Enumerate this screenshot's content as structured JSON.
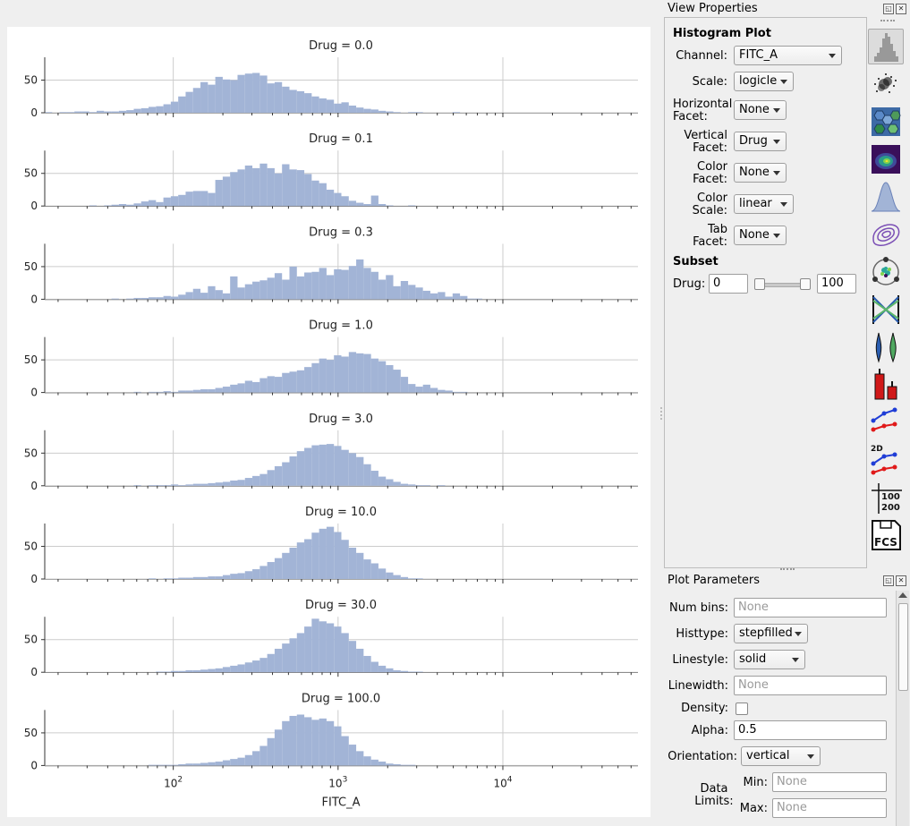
{
  "view_properties": {
    "title": "View Properties",
    "section_title": "Histogram Plot",
    "channel": {
      "label": "Channel:",
      "value": "FITC_A"
    },
    "scale": {
      "label": "Scale:",
      "value": "logicle"
    },
    "horizontal_facet": {
      "label_line1": "Horizontal",
      "label_line2": "Facet:",
      "value": "None"
    },
    "vertical_facet": {
      "label_line1": "Vertical",
      "label_line2": "Facet:",
      "value": "Drug"
    },
    "color_facet": {
      "label_line1": "Color",
      "label_line2": "Facet:",
      "value": "None"
    },
    "color_scale": {
      "label_line1": "Color",
      "label_line2": "Scale:",
      "value": "linear"
    },
    "tab_facet": {
      "label_line1": "Tab",
      "label_line2": "Facet:",
      "value": "None"
    },
    "subset_title": "Subset",
    "subset": {
      "label": "Drug:",
      "min_value": "0",
      "max_value": "100"
    }
  },
  "toolbar": {
    "icons": [
      "histogram-icon",
      "scatterplot-icon",
      "hexbin-icon",
      "density-2d-icon",
      "kde-icon",
      "contour-icon",
      "radviz-icon",
      "parallel-coordinates-icon",
      "violin-icon",
      "bar-chart-icon",
      "stats-1d-icon",
      "stats-2d-icon",
      "table-view-icon",
      "export-fcs-icon"
    ],
    "text": {
      "stats_2d": "2D",
      "table_top": "100",
      "table_bottom": "200",
      "fcs": "FCS"
    }
  },
  "plot_parameters": {
    "title": "Plot Parameters",
    "num_bins": {
      "label": "Num bins:",
      "placeholder": "None"
    },
    "histtype": {
      "label": "Histtype:",
      "value": "stepfilled"
    },
    "linestyle": {
      "label": "Linestyle:",
      "value": "solid"
    },
    "linewidth": {
      "label": "Linewidth:",
      "placeholder": "None"
    },
    "density": {
      "label": "Density:",
      "checked": false
    },
    "alpha": {
      "label": "Alpha:",
      "value": "0.5"
    },
    "orientation": {
      "label": "Orientation:",
      "value": "vertical"
    },
    "data_limits": {
      "label_line1": "Data",
      "label_line2": "Limits:",
      "min_label": "Min:",
      "min_placeholder": "None",
      "max_label": "Max:",
      "max_placeholder": "None"
    }
  },
  "colors": {
    "bar_fill": "#a2b4d6",
    "grid": "#cccccc",
    "accent_purple": "#7b4fb5"
  },
  "chart_data": {
    "type": "bar",
    "x_label": "FITC_A",
    "x_scale": "log",
    "x_tick_labels": [
      {
        "base": "10",
        "exp": "2"
      },
      {
        "base": "10",
        "exp": "3"
      },
      {
        "base": "10",
        "exp": "4"
      }
    ],
    "y_ticks": [
      0,
      50
    ],
    "ylim": [
      0,
      85
    ],
    "log_bins": {
      "log_min": 1.22,
      "log_max": 4.82,
      "count": 80
    },
    "facets": [
      {
        "title": "Drug = 0.0",
        "counts": [
          1,
          0,
          1,
          1,
          2,
          2,
          1,
          3,
          2,
          2,
          3,
          4,
          6,
          7,
          9,
          10,
          13,
          17,
          25,
          32,
          38,
          47,
          43,
          55,
          51,
          50,
          58,
          60,
          61,
          57,
          45,
          47,
          40,
          35,
          33,
          30,
          25,
          22,
          20,
          14,
          16,
          11,
          8,
          6,
          5,
          3,
          2,
          1,
          0,
          1,
          1,
          0,
          0,
          0,
          0,
          1,
          0,
          0,
          0,
          0,
          0,
          0,
          0,
          0,
          0,
          0,
          0,
          0,
          0,
          0,
          0,
          0,
          0,
          0,
          0,
          0,
          0,
          0,
          0,
          0
        ]
      },
      {
        "title": "Drug = 0.1",
        "counts": [
          0,
          0,
          0,
          0,
          0,
          0,
          1,
          0,
          1,
          2,
          3,
          2,
          4,
          7,
          9,
          6,
          13,
          15,
          17,
          22,
          23,
          23,
          20,
          40,
          45,
          52,
          56,
          62,
          58,
          65,
          58,
          50,
          64,
          56,
          55,
          49,
          39,
          35,
          25,
          20,
          15,
          8,
          5,
          3,
          16,
          3,
          1,
          0,
          0,
          1,
          0,
          0,
          0,
          0,
          0,
          0,
          0,
          0,
          0,
          0,
          0,
          0,
          0,
          0,
          0,
          0,
          0,
          0,
          0,
          0,
          0,
          0,
          0,
          0,
          0,
          0,
          0,
          0,
          0,
          0
        ]
      },
      {
        "title": "Drug = 0.3",
        "counts": [
          0,
          0,
          0,
          0,
          0,
          0,
          0,
          0,
          0,
          1,
          0,
          1,
          2,
          2,
          3,
          3,
          5,
          4,
          7,
          11,
          16,
          10,
          20,
          14,
          9,
          35,
          18,
          23,
          27,
          29,
          33,
          40,
          30,
          50,
          35,
          41,
          42,
          48,
          37,
          46,
          45,
          51,
          61,
          48,
          42,
          30,
          37,
          20,
          28,
          22,
          18,
          13,
          9,
          11,
          4,
          9,
          5,
          1,
          1,
          0,
          0,
          0,
          0,
          0,
          0,
          0,
          0,
          0,
          0,
          0,
          0,
          0,
          0,
          0,
          0,
          0,
          0,
          0,
          0,
          0
        ]
      },
      {
        "title": "Drug = 1.0",
        "counts": [
          0,
          0,
          0,
          0,
          0,
          0,
          0,
          0,
          0,
          0,
          0,
          0,
          1,
          0,
          1,
          1,
          2,
          1,
          3,
          3,
          4,
          5,
          5,
          7,
          9,
          12,
          14,
          18,
          16,
          22,
          25,
          24,
          30,
          32,
          34,
          39,
          45,
          52,
          50,
          57,
          55,
          62,
          60,
          59,
          52,
          48,
          42,
          35,
          24,
          13,
          9,
          12,
          7,
          4,
          3,
          1,
          1,
          0,
          0,
          0,
          0,
          0,
          0,
          0,
          0,
          0,
          0,
          0,
          0,
          0,
          0,
          0,
          0,
          0,
          0,
          0,
          0,
          0,
          0,
          0
        ]
      },
      {
        "title": "Drug = 3.0",
        "counts": [
          0,
          0,
          0,
          0,
          0,
          0,
          0,
          0,
          0,
          0,
          0,
          0,
          1,
          0,
          1,
          1,
          1,
          2,
          1,
          2,
          3,
          3,
          4,
          5,
          6,
          8,
          9,
          12,
          15,
          18,
          24,
          30,
          36,
          45,
          53,
          58,
          62,
          63,
          64,
          61,
          55,
          50,
          44,
          33,
          23,
          14,
          10,
          6,
          3,
          2,
          1,
          1,
          0,
          1,
          0,
          0,
          0,
          0,
          0,
          0,
          0,
          0,
          0,
          0,
          0,
          0,
          0,
          0,
          0,
          0,
          0,
          0,
          0,
          0,
          0,
          0,
          0,
          0,
          0,
          0
        ]
      },
      {
        "title": "Drug = 10.0",
        "counts": [
          0,
          0,
          0,
          0,
          0,
          0,
          0,
          0,
          0,
          0,
          0,
          0,
          0,
          0,
          1,
          0,
          1,
          1,
          2,
          2,
          3,
          3,
          4,
          4,
          6,
          8,
          9,
          12,
          15,
          20,
          26,
          32,
          40,
          48,
          56,
          61,
          71,
          77,
          80,
          72,
          60,
          48,
          40,
          30,
          24,
          16,
          10,
          6,
          3,
          1,
          1,
          0,
          0,
          0,
          0,
          0,
          0,
          0,
          0,
          0,
          0,
          0,
          0,
          0,
          0,
          0,
          0,
          0,
          0,
          0,
          0,
          0,
          0,
          0,
          0,
          0,
          0,
          0,
          0,
          0
        ]
      },
      {
        "title": "Drug = 30.0",
        "counts": [
          0,
          0,
          0,
          0,
          0,
          0,
          0,
          0,
          0,
          0,
          0,
          0,
          0,
          0,
          0,
          1,
          1,
          2,
          2,
          3,
          3,
          4,
          5,
          6,
          8,
          10,
          12,
          15,
          18,
          22,
          28,
          36,
          44,
          52,
          60,
          70,
          82,
          78,
          75,
          70,
          60,
          48,
          36,
          25,
          16,
          10,
          6,
          3,
          2,
          1,
          1,
          0,
          0,
          0,
          0,
          0,
          0,
          0,
          0,
          0,
          0,
          0,
          0,
          0,
          0,
          0,
          0,
          0,
          0,
          0,
          0,
          0,
          0,
          0,
          0,
          0,
          0,
          0,
          0,
          0
        ]
      },
      {
        "title": "Drug = 100.0",
        "counts": [
          0,
          0,
          0,
          0,
          0,
          0,
          0,
          0,
          0,
          0,
          0,
          0,
          0,
          0,
          1,
          1,
          1,
          1,
          2,
          3,
          3,
          4,
          5,
          6,
          8,
          10,
          12,
          16,
          22,
          30,
          42,
          55,
          68,
          76,
          78,
          74,
          70,
          72,
          68,
          60,
          45,
          32,
          22,
          14,
          9,
          6,
          3,
          2,
          1,
          1,
          0,
          0,
          0,
          0,
          0,
          0,
          0,
          0,
          0,
          0,
          0,
          0,
          0,
          0,
          0,
          0,
          0,
          0,
          0,
          0,
          0,
          0,
          0,
          0,
          0,
          0,
          0,
          0,
          0,
          0
        ]
      }
    ]
  }
}
